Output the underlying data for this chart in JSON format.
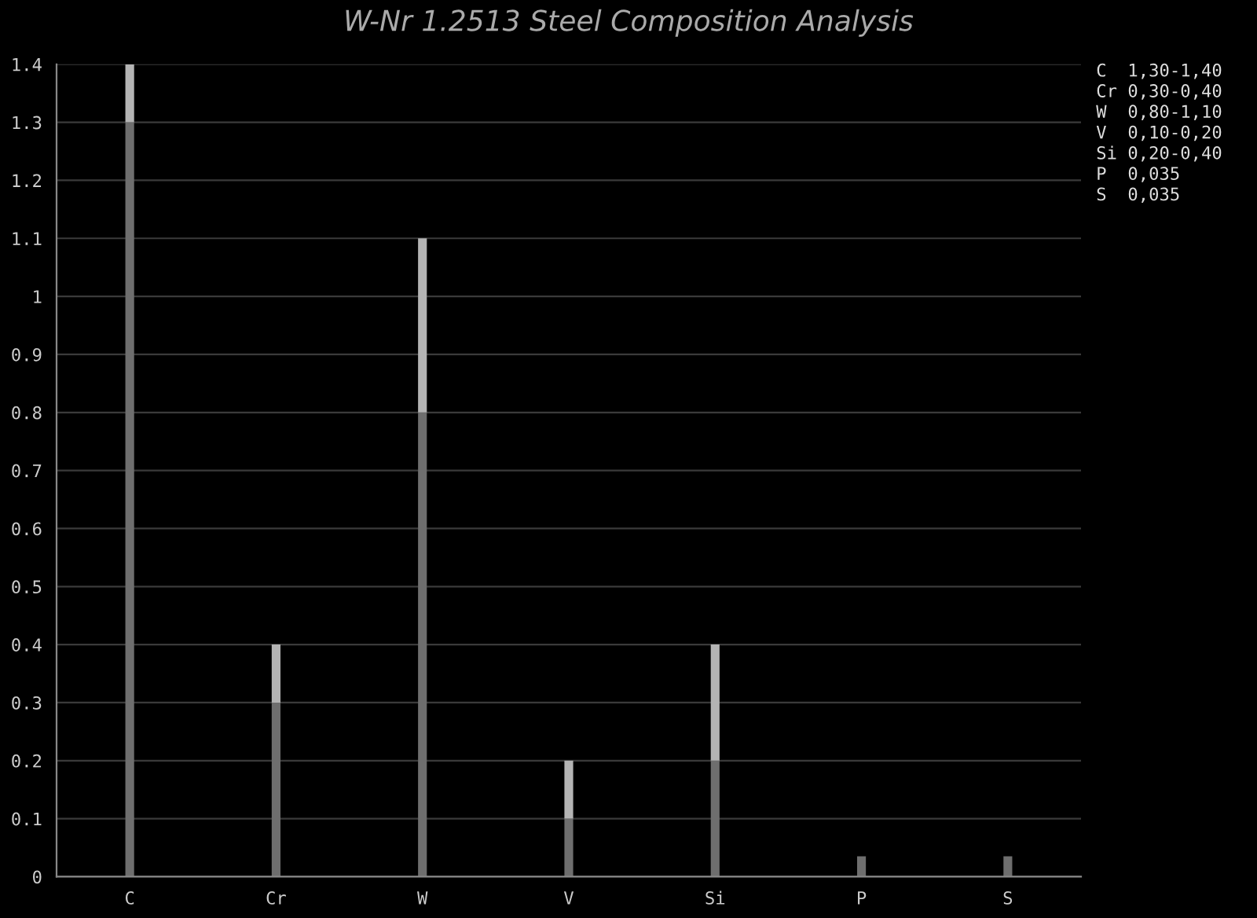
{
  "chart_data": {
    "type": "bar",
    "title": "W-Nr 1.2513 Steel Composition Analysis",
    "categories": [
      "C",
      "Cr",
      "W",
      "V",
      "Si",
      "P",
      "S"
    ],
    "stacked": true,
    "series": [
      {
        "color": "#6e6e6e",
        "values": [
          1.3,
          0.3,
          0.8,
          0.1,
          0.2,
          0.035,
          0.035
        ]
      },
      {
        "color": "#b4b4b4",
        "values": [
          0.1,
          0.1,
          0.3,
          0.1,
          0.2,
          null,
          null
        ]
      }
    ],
    "ylim": [
      0,
      1.4
    ],
    "yticks": [
      0,
      0.1,
      0.2,
      0.3,
      0.4,
      0.5,
      0.6,
      0.7,
      0.8,
      0.9,
      1,
      1.1,
      1.2,
      1.3,
      1.4
    ],
    "grid": "y",
    "legend": false,
    "annotations": [
      "C  1,30-1,40",
      "Cr 0,30-0,40",
      "W  0,80-1,10",
      "V  0,10-0,20",
      "Si 0,20-0,40",
      "P  0,035",
      "S  0,035"
    ]
  }
}
